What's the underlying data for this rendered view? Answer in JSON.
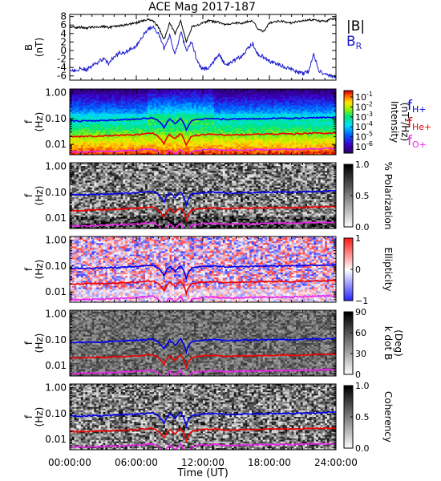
{
  "title": "ACE Mag 2017-187",
  "x_axis": {
    "label": "Time (UT)",
    "range_hours": [
      0,
      24
    ],
    "ticks": [
      {
        "h": 0,
        "label": "00:00:00"
      },
      {
        "h": 6,
        "label": "06:00:00"
      },
      {
        "h": 12,
        "label": "12:00:00"
      },
      {
        "h": 18,
        "label": "18:00:00"
      },
      {
        "h": 24,
        "label": "24:00:00"
      }
    ]
  },
  "colors": {
    "bmag": "#000000",
    "br": "#1a1acc",
    "fH": "#0000ee",
    "fHe": "#ee0000",
    "fO": "#ee22ee"
  },
  "chart_data": [
    {
      "type": "line",
      "panel": "B",
      "ylabel": "B",
      "yunit": "(nT)",
      "ylim": [
        -7,
        8.5
      ],
      "yticks": [
        -6,
        -4,
        -2,
        0,
        2,
        4,
        6,
        8
      ],
      "series": [
        {
          "name": "|B|",
          "color": "#000000",
          "x": [
            0,
            0.5,
            1,
            1.5,
            2,
            2.5,
            3,
            3.5,
            4,
            4.5,
            5,
            5.5,
            6,
            6.5,
            7,
            7.5,
            8,
            8.5,
            9,
            9.5,
            10,
            10.5,
            11,
            11.5,
            12,
            12.5,
            13,
            13.5,
            14,
            14.5,
            15,
            15.5,
            16,
            16.5,
            17,
            17.5,
            18,
            18.5,
            19,
            19.5,
            20,
            20.5,
            21,
            21.5,
            22,
            22.5,
            23,
            23.5,
            24
          ],
          "values": [
            5.6,
            5.4,
            5.5,
            5.3,
            5.5,
            5.6,
            5.7,
            5.4,
            5.6,
            5.8,
            6.0,
            6.3,
            6.5,
            7.0,
            7.3,
            7.0,
            5.5,
            2.5,
            6.5,
            4.0,
            7.0,
            2.0,
            5.5,
            6.0,
            6.5,
            7.0,
            6.8,
            6.6,
            6.0,
            6.3,
            6.5,
            6.3,
            6.8,
            7.0,
            5.0,
            4.5,
            6.5,
            6.7,
            7.0,
            6.6,
            6.5,
            6.8,
            7.0,
            7.2,
            7.3,
            7.0,
            6.8,
            7.3,
            7.5
          ]
        },
        {
          "name": "B_R",
          "color": "#1a1acc",
          "x": [
            0,
            0.5,
            1,
            1.5,
            2,
            2.5,
            3,
            3.5,
            4,
            4.5,
            5,
            5.5,
            6,
            6.5,
            7,
            7.5,
            8,
            8.5,
            9,
            9.5,
            10,
            10.5,
            11,
            11.5,
            12,
            12.5,
            13,
            13.5,
            14,
            14.5,
            15,
            15.5,
            16,
            16.5,
            17,
            17.5,
            18,
            18.5,
            19,
            19.5,
            20,
            20.5,
            21,
            21.5,
            22,
            22.5,
            23,
            23.5,
            24
          ],
          "values": [
            -4.6,
            -4.7,
            -4.2,
            -4.8,
            -3.5,
            -3.0,
            -2.0,
            -3.0,
            -1.5,
            -0.5,
            -0.5,
            0.5,
            1.0,
            3.0,
            5.0,
            5.5,
            4.0,
            0.5,
            3.5,
            -1.0,
            4.5,
            0.0,
            2.0,
            -2.5,
            -4.5,
            -4.0,
            -2.5,
            -1.0,
            -3.5,
            -3.0,
            -2.0,
            -1.5,
            0.5,
            1.5,
            -1.0,
            -1.5,
            -2.5,
            -3.0,
            -3.5,
            -4.0,
            -4.5,
            -5.0,
            -5.5,
            -5.0,
            -1.0,
            -5.0,
            -5.5,
            -6.0,
            -6.2
          ]
        }
      ],
      "legend": [
        {
          "text": "|B|",
          "color": "#000000"
        },
        {
          "text": "B",
          "sub": "R",
          "color": "#1a1acc"
        }
      ]
    },
    {
      "type": "heatmap",
      "panel": "intensity",
      "ylabel": "f",
      "yunit": "(Hz)",
      "ylim": [
        0.004,
        1.4
      ],
      "yscale": "log",
      "yticks": [
        {
          "v": 1.0,
          "label": "1.00"
        },
        {
          "v": 0.1,
          "label": "0.10"
        },
        {
          "v": 0.01,
          "label": "0.01"
        }
      ],
      "colorbar": {
        "label": "Intensity",
        "unit": "(nT²/Hz)",
        "scale": "log",
        "ticks": [
          {
            "label": "10",
            "exp": "-1"
          },
          {
            "label": "10",
            "exp": "-2"
          },
          {
            "label": "10",
            "exp": "-3"
          },
          {
            "label": "10",
            "exp": "-4"
          },
          {
            "label": "10",
            "exp": "-5"
          },
          {
            "label": "10",
            "exp": "-6"
          }
        ]
      },
      "legend": [
        {
          "text": "f",
          "sub": "H+",
          "color": "#0000ee"
        },
        {
          "text": "f",
          "sub": "He+",
          "color": "#ee0000"
        },
        {
          "text": "f",
          "sub": "O+",
          "color": "#ee22ee"
        }
      ]
    },
    {
      "type": "heatmap",
      "panel": "polarization",
      "ylabel": "f",
      "yunit": "(Hz)",
      "ylim": [
        0.004,
        1.4
      ],
      "yscale": "log",
      "yticks": [
        {
          "v": 1.0,
          "label": "1.00"
        },
        {
          "v": 0.1,
          "label": "0.10"
        },
        {
          "v": 0.01,
          "label": "0.01"
        }
      ],
      "colorbar": {
        "label": "% Polarization",
        "ticks": [
          {
            "label": "1.0",
            "v": 1.0
          },
          {
            "label": "0.5",
            "v": 0.5
          },
          {
            "label": "0.0",
            "v": 0.0
          }
        ],
        "range": [
          0,
          1
        ]
      }
    },
    {
      "type": "heatmap",
      "panel": "ellipticity",
      "ylabel": "f",
      "yunit": "(Hz)",
      "ylim": [
        0.004,
        1.4
      ],
      "yscale": "log",
      "yticks": [
        {
          "v": 1.0,
          "label": "1.00"
        },
        {
          "v": 0.1,
          "label": "0.10"
        },
        {
          "v": 0.01,
          "label": "0.01"
        }
      ],
      "colorbar": {
        "label": "Ellipticity",
        "ticks": [
          {
            "label": "1",
            "v": 1
          },
          {
            "label": "0",
            "v": 0
          },
          {
            "label": "−1",
            "v": -1
          }
        ],
        "range": [
          -1,
          1
        ]
      }
    },
    {
      "type": "heatmap",
      "panel": "kdotb",
      "ylabel": "f",
      "yunit": "(Hz)",
      "ylim": [
        0.004,
        1.4
      ],
      "yscale": "log",
      "yticks": [
        {
          "v": 1.0,
          "label": "1.00"
        },
        {
          "v": 0.1,
          "label": "0.10"
        },
        {
          "v": 0.01,
          "label": "0.01"
        }
      ],
      "colorbar": {
        "label": "k dot B",
        "unit": "(Deg)",
        "ticks": [
          {
            "label": "90",
            "v": 90
          },
          {
            "label": "60",
            "v": 60
          },
          {
            "label": "30",
            "v": 30
          },
          {
            "label": "0",
            "v": 0
          }
        ],
        "range": [
          0,
          90
        ]
      }
    },
    {
      "type": "heatmap",
      "panel": "coherency",
      "ylabel": "f",
      "yunit": "(Hz)",
      "ylim": [
        0.004,
        1.4
      ],
      "yscale": "log",
      "yticks": [
        {
          "v": 1.0,
          "label": "1.00"
        },
        {
          "v": 0.1,
          "label": "0.10"
        },
        {
          "v": 0.01,
          "label": "0.01"
        }
      ],
      "colorbar": {
        "label": "Coherency",
        "ticks": [
          {
            "label": "1.0",
            "v": 1.0
          },
          {
            "label": "0.5",
            "v": 0.5
          },
          {
            "label": "0.0",
            "v": 0.0
          }
        ],
        "range": [
          0,
          1
        ]
      }
    }
  ],
  "gyrofrequencies": {
    "x": [
      0,
      1,
      2,
      3,
      4,
      5,
      6,
      7,
      7.5,
      8,
      8.5,
      9,
      9.5,
      10,
      10.5,
      11,
      11.5,
      12,
      13,
      14,
      15,
      16,
      17,
      18,
      19,
      20,
      21,
      22,
      23,
      24
    ],
    "fH_hz": [
      0.082,
      0.08,
      0.083,
      0.084,
      0.088,
      0.092,
      0.097,
      0.104,
      0.108,
      0.08,
      0.042,
      0.098,
      0.062,
      0.105,
      0.034,
      0.085,
      0.092,
      0.097,
      0.102,
      0.093,
      0.096,
      0.097,
      0.1,
      0.101,
      0.104,
      0.1,
      0.105,
      0.108,
      0.11,
      0.112
    ],
    "fHe_hz": [
      0.02,
      0.02,
      0.021,
      0.021,
      0.022,
      0.023,
      0.024,
      0.026,
      0.027,
      0.02,
      0.011,
      0.024,
      0.016,
      0.026,
      0.009,
      0.021,
      0.023,
      0.024,
      0.025,
      0.023,
      0.024,
      0.024,
      0.025,
      0.025,
      0.026,
      0.025,
      0.026,
      0.027,
      0.027,
      0.028
    ],
    "fO_hz": [
      0.0052,
      0.005,
      0.0052,
      0.0053,
      0.0055,
      0.0057,
      0.0061,
      0.0065,
      0.0068,
      0.005,
      0.0028,
      0.0061,
      0.004,
      0.0066,
      0.0024,
      0.0053,
      0.0058,
      0.0061,
      0.0064,
      0.0058,
      0.006,
      0.0061,
      0.0063,
      0.0063,
      0.0065,
      0.0063,
      0.0066,
      0.0068,
      0.0069,
      0.007
    ]
  }
}
